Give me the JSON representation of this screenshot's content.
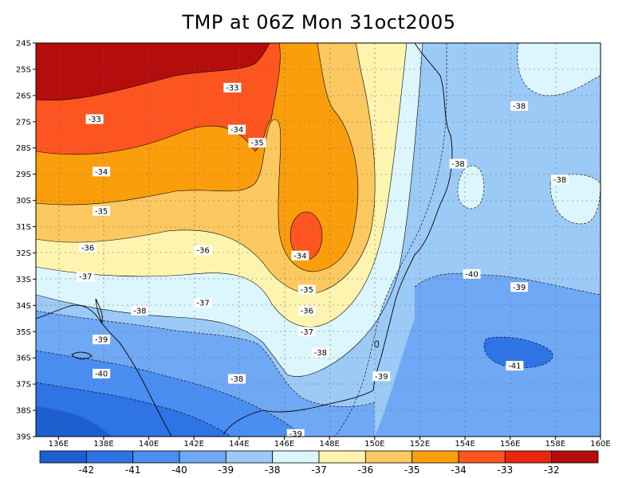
{
  "title": "TMP at 06Z Mon 31oct2005",
  "chart_data": {
    "type": "filled-contour-map",
    "variable": "TMP",
    "title": "TMP at 06Z Mon 31oct2005",
    "xlim": [
      135,
      160
    ],
    "ylim": [
      -39,
      -24
    ],
    "x_ticks": [
      "136E",
      "138E",
      "140E",
      "142E",
      "144E",
      "146E",
      "148E",
      "150E",
      "152E",
      "154E",
      "156E",
      "158E",
      "160E"
    ],
    "y_ticks": [
      "24S",
      "25S",
      "26S",
      "27S",
      "28S",
      "29S",
      "30S",
      "31S",
      "32S",
      "33S",
      "34S",
      "35S",
      "36S",
      "37S",
      "38S",
      "39S"
    ],
    "grid": true,
    "colorbar": {
      "labels": [
        "-42",
        "-41",
        "-40",
        "-39",
        "-38",
        "-37",
        "-36",
        "-35",
        "-34",
        "-33",
        "-32"
      ],
      "colors": [
        "#1e5fd0",
        "#2e74e6",
        "#4a8ef2",
        "#6fa8f4",
        "#9ccaf7",
        "#dcf6fe",
        "#fdf4b0",
        "#fcc860",
        "#fb9e0c",
        "#ff5520",
        "#e92612",
        "#b50d0d"
      ]
    },
    "contour_labels": [
      {
        "text": "-33",
        "lon": 137.6,
        "lat": -26.9
      },
      {
        "text": "-33",
        "lon": 143.7,
        "lat": -25.7
      },
      {
        "text": "-34",
        "lon": 143.9,
        "lat": -27.3
      },
      {
        "text": "-35",
        "lon": 144.8,
        "lat": -27.8
      },
      {
        "text": "-34",
        "lon": 137.9,
        "lat": -28.9
      },
      {
        "text": "-35",
        "lon": 137.9,
        "lat": -30.4
      },
      {
        "text": "-36",
        "lon": 137.3,
        "lat": -31.8
      },
      {
        "text": "-36",
        "lon": 142.4,
        "lat": -31.9
      },
      {
        "text": "-34",
        "lon": 146.7,
        "lat": -32.1
      },
      {
        "text": "-37",
        "lon": 137.2,
        "lat": -32.9
      },
      {
        "text": "-35",
        "lon": 147.0,
        "lat": -33.4
      },
      {
        "text": "-37",
        "lon": 142.4,
        "lat": -33.9
      },
      {
        "text": "-38",
        "lon": 139.6,
        "lat": -34.2
      },
      {
        "text": "-36",
        "lon": 147.0,
        "lat": -34.2
      },
      {
        "text": "-37",
        "lon": 147.0,
        "lat": -35.0
      },
      {
        "text": "-39",
        "lon": 137.9,
        "lat": -35.3
      },
      {
        "text": "-38",
        "lon": 147.6,
        "lat": -35.8
      },
      {
        "text": "-40",
        "lon": 137.9,
        "lat": -36.6
      },
      {
        "text": "-38",
        "lon": 143.9,
        "lat": -36.8
      },
      {
        "text": "-39",
        "lon": 150.3,
        "lat": -36.7
      },
      {
        "text": "-39",
        "lon": 146.5,
        "lat": -38.9
      },
      {
        "text": "-38",
        "lon": 156.4,
        "lat": -26.4
      },
      {
        "text": "-38",
        "lon": 153.7,
        "lat": -28.6
      },
      {
        "text": "-38",
        "lon": 158.2,
        "lat": -29.2
      },
      {
        "text": "-40",
        "lon": 154.3,
        "lat": -32.8
      },
      {
        "text": "-39",
        "lon": 156.4,
        "lat": -33.3
      },
      {
        "text": "-41",
        "lon": 156.2,
        "lat": -36.3
      }
    ]
  }
}
